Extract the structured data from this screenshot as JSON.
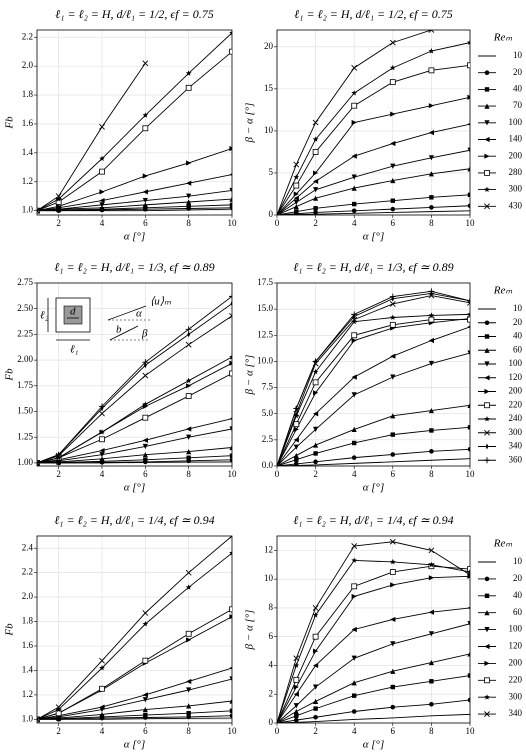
{
  "chart_data": [
    {
      "type": "line",
      "title": "ℓ₁ = ℓ₂ = H, d/ℓ₁ = 1/2, ϵf = 0.75",
      "xlabel": "α [°]",
      "ylabel": "Fb",
      "color": "#000000",
      "grid": true,
      "x": [
        1,
        2,
        4,
        6,
        8,
        10
      ],
      "xlim": [
        1,
        10
      ],
      "xticks": [
        2,
        4,
        6,
        8,
        10
      ],
      "ylim": [
        0.97,
        2.25
      ],
      "yticks": [
        {
          "value": 1,
          "label": "1.0"
        },
        1.2,
        1.4,
        1.6,
        1.8,
        {
          "value": 2,
          "label": "2.0"
        },
        2.2
      ],
      "series": [
        {
          "marker": "none",
          "values": [
            1,
            1,
            1,
            1,
            1.005,
            1.01
          ]
        },
        {
          "marker": "circle",
          "values": [
            1,
            1,
            1.005,
            1.01,
            1.015,
            1.02
          ]
        },
        {
          "marker": "square",
          "values": [
            1,
            1.005,
            1.01,
            1.02,
            1.03,
            1.04
          ]
        },
        {
          "marker": "triangle-up",
          "values": [
            1,
            1.01,
            1.02,
            1.04,
            1.06,
            1.08
          ]
        },
        {
          "marker": "triangle-down",
          "values": [
            1,
            1.01,
            1.04,
            1.07,
            1.1,
            1.14
          ]
        },
        {
          "marker": "triangle-left",
          "values": [
            1,
            1.02,
            1.07,
            1.13,
            1.19,
            1.25
          ]
        },
        {
          "marker": "triangle-right",
          "values": [
            1,
            1.03,
            1.13,
            1.24,
            1.33,
            1.43
          ]
        },
        {
          "marker": "open-square",
          "values": [
            1,
            1.06,
            1.27,
            1.57,
            1.85,
            2.1
          ]
        },
        {
          "marker": "star",
          "values": [
            1,
            1.08,
            1.36,
            1.66,
            1.95,
            2.23
          ]
        },
        {
          "marker": "x",
          "values": [
            1,
            1.1,
            1.58,
            2.02,
            null,
            null
          ]
        }
      ]
    },
    {
      "type": "line",
      "title": "ℓ₁ = ℓ₂ = H, d/ℓ₁ = 1/2, ϵf = 0.75",
      "xlabel": "α [°]",
      "ylabel": "β − α [°]",
      "color": "#000000",
      "grid": true,
      "legend_title": "Reₘ",
      "x": [
        0,
        1,
        2,
        4,
        6,
        8,
        10
      ],
      "xlim": [
        0,
        10
      ],
      "xticks": [
        0,
        2,
        4,
        6,
        8,
        10
      ],
      "ylim": [
        0,
        22
      ],
      "yticks": [
        0,
        5,
        10,
        15,
        20
      ],
      "series": [
        {
          "name": "10",
          "marker": "none",
          "values": [
            0,
            0.05,
            0.1,
            0.2,
            0.3,
            0.4,
            0.5
          ]
        },
        {
          "name": "20",
          "marker": "circle",
          "values": [
            0,
            0.15,
            0.3,
            0.5,
            0.7,
            0.9,
            1.1
          ]
        },
        {
          "name": "40",
          "marker": "square",
          "values": [
            0,
            0.4,
            0.8,
            1.3,
            1.7,
            2.1,
            2.4
          ]
        },
        {
          "name": "70",
          "marker": "triangle-up",
          "values": [
            0,
            1,
            2,
            3.2,
            4.1,
            4.9,
            5.5
          ]
        },
        {
          "name": "100",
          "marker": "triangle-down",
          "values": [
            0,
            1.5,
            3,
            4.5,
            5.8,
            6.8,
            7.7
          ]
        },
        {
          "name": "140",
          "marker": "triangle-left",
          "values": [
            0,
            2,
            4,
            7,
            8.5,
            9.8,
            10.8
          ]
        },
        {
          "name": "200",
          "marker": "triangle-right",
          "values": [
            0,
            2.5,
            5,
            11,
            12,
            13,
            14
          ]
        },
        {
          "name": "280",
          "marker": "open-square",
          "values": [
            0,
            3.5,
            7.5,
            13,
            15.8,
            17.2,
            17.8
          ]
        },
        {
          "name": "300",
          "marker": "star",
          "values": [
            0,
            4.5,
            9,
            14.5,
            17.5,
            19.5,
            20.5
          ]
        },
        {
          "name": "430",
          "marker": "x",
          "values": [
            0,
            6,
            11,
            17.5,
            20.5,
            22,
            null
          ]
        }
      ]
    },
    {
      "type": "line",
      "title": "ℓ₁ = ℓ₂ = H, d/ℓ₁ = 1/3, ϵf ≃ 0.89",
      "xlabel": "α [°]",
      "ylabel": "Fb",
      "color": "#000000",
      "grid": true,
      "inset_labels": [
        "ℓ₂",
        "d",
        "ℓ₁",
        "⟨u⟩ₘ",
        "α",
        "b",
        "β"
      ],
      "x": [
        1,
        2,
        4,
        6,
        8,
        10
      ],
      "xlim": [
        1,
        10
      ],
      "xticks": [
        2,
        4,
        6,
        8,
        10
      ],
      "ylim": [
        0.97,
        2.75
      ],
      "yticks": [
        {
          "value": 1,
          "label": "1.00"
        },
        1.25,
        {
          "value": 1.5,
          "label": "1.50"
        },
        1.75,
        {
          "value": 2,
          "label": "2.00"
        },
        2.25,
        {
          "value": 2.5,
          "label": "2.50"
        },
        2.75
      ],
      "series": [
        {
          "marker": "none",
          "values": [
            1,
            1,
            1,
            1.005,
            1.008,
            1.01
          ]
        },
        {
          "marker": "circle",
          "values": [
            1,
            1,
            1.005,
            1.01,
            1.02,
            1.03
          ]
        },
        {
          "marker": "square",
          "values": [
            1,
            1.005,
            1.015,
            1.03,
            1.05,
            1.07
          ]
        },
        {
          "marker": "triangle-up",
          "values": [
            1,
            1.01,
            1.04,
            1.08,
            1.11,
            1.15
          ]
        },
        {
          "marker": "triangle-down",
          "values": [
            1,
            1.02,
            1.08,
            1.16,
            1.25,
            1.33
          ]
        },
        {
          "marker": "triangle-left",
          "values": [
            1,
            1.03,
            1.12,
            1.22,
            1.33,
            1.43
          ]
        },
        {
          "marker": "triangle-right",
          "values": [
            1,
            1.05,
            1.3,
            1.55,
            1.75,
            1.97
          ]
        },
        {
          "marker": "open-square",
          "values": [
            1,
            1.05,
            1.23,
            1.44,
            1.65,
            1.87
          ]
        },
        {
          "marker": "star",
          "values": [
            1,
            1.05,
            1.3,
            1.57,
            1.8,
            2.03
          ]
        },
        {
          "marker": "x",
          "values": [
            1,
            1.07,
            1.48,
            1.85,
            2.15,
            2.43
          ]
        },
        {
          "marker": "diamond",
          "values": [
            1,
            1.08,
            1.53,
            1.95,
            2.25,
            2.55
          ]
        },
        {
          "marker": "plus",
          "values": [
            1,
            1.08,
            1.55,
            1.98,
            2.3,
            2.62
          ]
        }
      ]
    },
    {
      "type": "line",
      "title": "ℓ₁ = ℓ₂ = H, d/ℓ₁ = 1/3, ϵf ≃ 0.89",
      "xlabel": "α [°]",
      "ylabel": "β − α [°]",
      "color": "#000000",
      "grid": true,
      "legend_title": "Reₘ",
      "x": [
        0,
        1,
        2,
        4,
        6,
        8,
        10
      ],
      "xlim": [
        0,
        10
      ],
      "xticks": [
        0,
        2,
        4,
        6,
        8,
        10
      ],
      "ylim": [
        0,
        17.5
      ],
      "yticks": [
        {
          "value": 0,
          "label": "0.0"
        },
        2.5,
        {
          "value": 5,
          "label": "5.0"
        },
        7.5,
        {
          "value": 10,
          "label": "10.0"
        },
        12.5,
        {
          "value": 15,
          "label": "15.0"
        },
        17.5
      ],
      "series": [
        {
          "name": "10",
          "marker": "none",
          "values": [
            0,
            0.05,
            0.1,
            0.25,
            0.4,
            0.55,
            0.7
          ]
        },
        {
          "name": "20",
          "marker": "circle",
          "values": [
            0,
            0.2,
            0.4,
            0.8,
            1.1,
            1.4,
            1.6
          ]
        },
        {
          "name": "40",
          "marker": "square",
          "values": [
            0,
            0.6,
            1.2,
            2.2,
            3,
            3.4,
            3.7
          ]
        },
        {
          "name": "60",
          "marker": "triangle-up",
          "values": [
            0,
            1,
            2,
            3.5,
            4.8,
            5.3,
            5.8
          ]
        },
        {
          "name": "100",
          "marker": "triangle-down",
          "values": [
            0,
            1.8,
            3.5,
            6.8,
            8.5,
            9.8,
            10.8
          ]
        },
        {
          "name": "120",
          "marker": "triangle-left",
          "values": [
            0,
            2.5,
            5,
            8.5,
            10.5,
            12,
            13.3
          ]
        },
        {
          "name": "200",
          "marker": "triangle-right",
          "values": [
            0,
            3.5,
            7,
            12,
            13.2,
            13.7,
            14.1
          ]
        },
        {
          "name": "220",
          "marker": "open-square",
          "values": [
            0,
            4,
            8,
            12.5,
            13.5,
            14,
            14
          ]
        },
        {
          "name": "240",
          "marker": "star",
          "values": [
            0,
            4.8,
            9,
            13.8,
            14.2,
            14.4,
            14.5
          ]
        },
        {
          "name": "300",
          "marker": "x",
          "values": [
            0,
            5,
            9.8,
            14,
            15.5,
            16.3,
            15.6
          ]
        },
        {
          "name": "340",
          "marker": "diamond",
          "values": [
            0,
            5.5,
            10,
            14.3,
            16,
            16.5,
            15.8
          ]
        },
        {
          "name": "360",
          "marker": "plus",
          "values": [
            0,
            5.5,
            10,
            14.5,
            16.2,
            16.7,
            15.8
          ]
        }
      ]
    },
    {
      "type": "line",
      "title": "ℓ₁ = ℓ₂ = H, d/ℓ₁ = 1/4, ϵf ≃ 0.94",
      "xlabel": "α [°]",
      "ylabel": "Fb",
      "color": "#000000",
      "grid": true,
      "x": [
        1,
        2,
        4,
        6,
        8,
        10
      ],
      "xlim": [
        1,
        10
      ],
      "xticks": [
        2,
        4,
        6,
        8,
        10
      ],
      "ylim": [
        0.97,
        2.5
      ],
      "yticks": [
        {
          "value": 1,
          "label": "1.0"
        },
        1.2,
        1.4,
        1.6,
        1.8,
        {
          "value": 2,
          "label": "2.0"
        },
        2.2,
        2.4
      ],
      "series": [
        {
          "marker": "none",
          "values": [
            1,
            1,
            1,
            1.005,
            1.008,
            1.01
          ]
        },
        {
          "marker": "circle",
          "values": [
            1,
            1,
            1.01,
            1.015,
            1.02,
            1.03
          ]
        },
        {
          "marker": "square",
          "values": [
            1,
            1.005,
            1.02,
            1.035,
            1.05,
            1.07
          ]
        },
        {
          "marker": "triangle-up",
          "values": [
            1,
            1.01,
            1.04,
            1.08,
            1.11,
            1.15
          ]
        },
        {
          "marker": "triangle-down",
          "values": [
            1,
            1.02,
            1.08,
            1.16,
            1.24,
            1.33
          ]
        },
        {
          "marker": "triangle-left",
          "values": [
            1,
            1.03,
            1.1,
            1.2,
            1.31,
            1.42
          ]
        },
        {
          "marker": "triangle-right",
          "values": [
            1,
            1.05,
            1.24,
            1.46,
            1.65,
            1.84
          ]
        },
        {
          "marker": "open-square",
          "values": [
            1,
            1.05,
            1.25,
            1.48,
            1.7,
            1.9
          ]
        },
        {
          "marker": "star",
          "values": [
            1,
            1.08,
            1.42,
            1.78,
            2.08,
            2.36
          ]
        },
        {
          "marker": "x",
          "values": [
            1,
            1.1,
            1.48,
            1.87,
            2.2,
            2.5
          ]
        }
      ]
    },
    {
      "type": "line",
      "title": "ℓ₁ = ℓ₂ = H, d/ℓ₁ = 1/4, ϵf ≃ 0.94",
      "xlabel": "α [°]",
      "ylabel": "β − α [°]",
      "color": "#000000",
      "grid": true,
      "legend_title": "Reₘ",
      "x": [
        0,
        1,
        2,
        4,
        6,
        8,
        10
      ],
      "xlim": [
        0,
        10
      ],
      "xticks": [
        0,
        2,
        4,
        6,
        8,
        10
      ],
      "ylim": [
        0,
        13
      ],
      "yticks": [
        0,
        2,
        4,
        6,
        8,
        10,
        12
      ],
      "series": [
        {
          "name": "10",
          "marker": "none",
          "values": [
            0,
            0.05,
            0.1,
            0.25,
            0.35,
            0.5,
            0.6
          ]
        },
        {
          "name": "20",
          "marker": "circle",
          "values": [
            0,
            0.2,
            0.4,
            0.8,
            1.1,
            1.3,
            1.6
          ]
        },
        {
          "name": "40",
          "marker": "square",
          "values": [
            0,
            0.5,
            1,
            1.9,
            2.5,
            2.9,
            3.3
          ]
        },
        {
          "name": "60",
          "marker": "triangle-up",
          "values": [
            0,
            0.8,
            1.5,
            2.8,
            3.6,
            4.2,
            4.8
          ]
        },
        {
          "name": "100",
          "marker": "triangle-down",
          "values": [
            0,
            1.2,
            2.5,
            4.5,
            5.5,
            6.2,
            6.9
          ]
        },
        {
          "name": "120",
          "marker": "triangle-left",
          "values": [
            0,
            2,
            4,
            6.5,
            7.2,
            7.7,
            8
          ]
        },
        {
          "name": "200",
          "marker": "triangle-right",
          "values": [
            0,
            2.5,
            5,
            8.8,
            9.6,
            10.1,
            10.2
          ]
        },
        {
          "name": "220",
          "marker": "open-square",
          "values": [
            0,
            3,
            6,
            9.5,
            10.5,
            10.9,
            10.7
          ]
        },
        {
          "name": "300",
          "marker": "star",
          "values": [
            0,
            4,
            7.5,
            11.3,
            11.2,
            11,
            10.5
          ]
        },
        {
          "name": "340",
          "marker": "x",
          "values": [
            0,
            4.5,
            8,
            12.3,
            12.6,
            12,
            10.3
          ]
        }
      ]
    }
  ]
}
